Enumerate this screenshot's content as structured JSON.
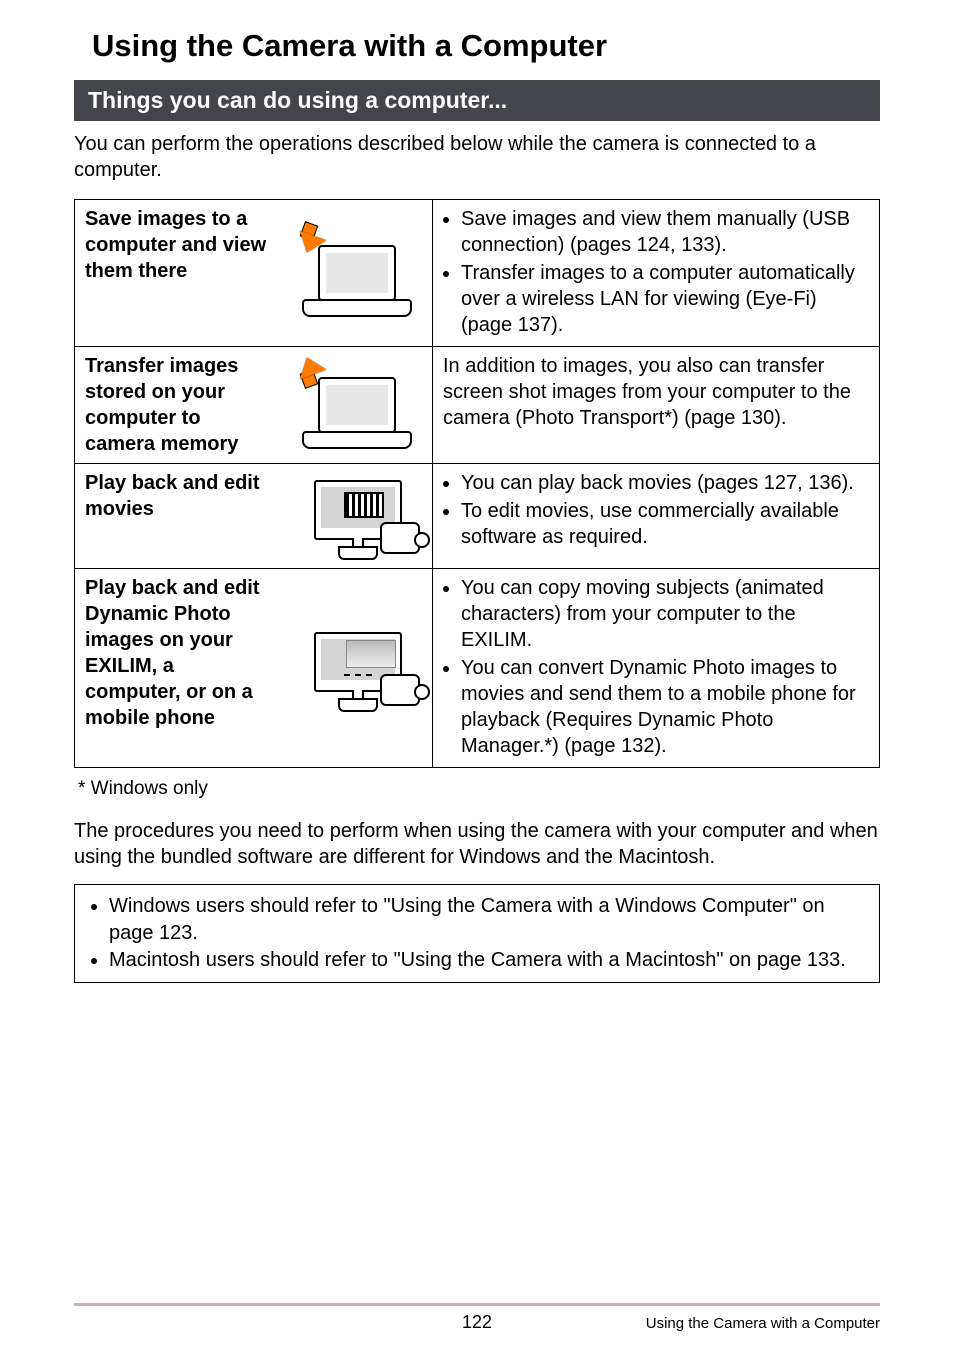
{
  "page_title": "Using the Camera with a Computer",
  "section_header": "Things you can do using a computer...",
  "intro": "You can perform the operations described below while the camera is connected to a computer.",
  "table": {
    "rows": [
      {
        "title": "Save images to a computer and view them there",
        "desc_items": [
          "Save images and view them manually (USB connection) (pages 124, 133).",
          "Transfer images to a computer automatically over a wireless LAN for viewing (Eye-Fi) (page 137)."
        ],
        "desc_plain": null,
        "illus": "laptop-in"
      },
      {
        "title": "Transfer images stored on your computer to camera memory",
        "desc_items": null,
        "desc_plain": "In addition to images, you also can transfer screen shot images from your computer to the camera (Photo Transport*) (page 130).",
        "illus": "laptop-out"
      },
      {
        "title": "Play back and edit movies",
        "desc_items": [
          "You can play back movies (pages 127, 136).",
          "To edit movies, use commercially available software as required."
        ],
        "desc_plain": null,
        "illus": "monitor-film"
      },
      {
        "title": "Play back and edit Dynamic Photo images on your EXILIM, a computer, or on a mobile phone",
        "desc_items": [
          "You can copy moving subjects (animated characters) from your computer to the EXILIM.",
          "You can convert Dynamic Photo images to movies and send them to a mobile phone for playback (Requires Dynamic Photo Manager.*) (page 132)."
        ],
        "desc_plain": null,
        "illus": "monitor-dynamic"
      }
    ]
  },
  "footnote": "* Windows only",
  "below_paragraph": "The procedures you need to perform when using the camera with your computer and when using the bundled software are different for Windows and the Macintosh.",
  "ref_box_items": [
    "Windows users should refer to \"Using the Camera with a Windows Computer\" on page 123.",
    "Macintosh users should refer to \"Using the Camera with a Macintosh\" on page 133."
  ],
  "footer": {
    "page_number": "122",
    "section_label": "Using the Camera with a Computer"
  },
  "colors": {
    "section_header_bg": "#44454a",
    "section_header_fg": "#ffffff",
    "footer_rule": "#cfadb5",
    "arrow_fill": "#ff7b00",
    "text": "#000000",
    "background": "#ffffff"
  }
}
